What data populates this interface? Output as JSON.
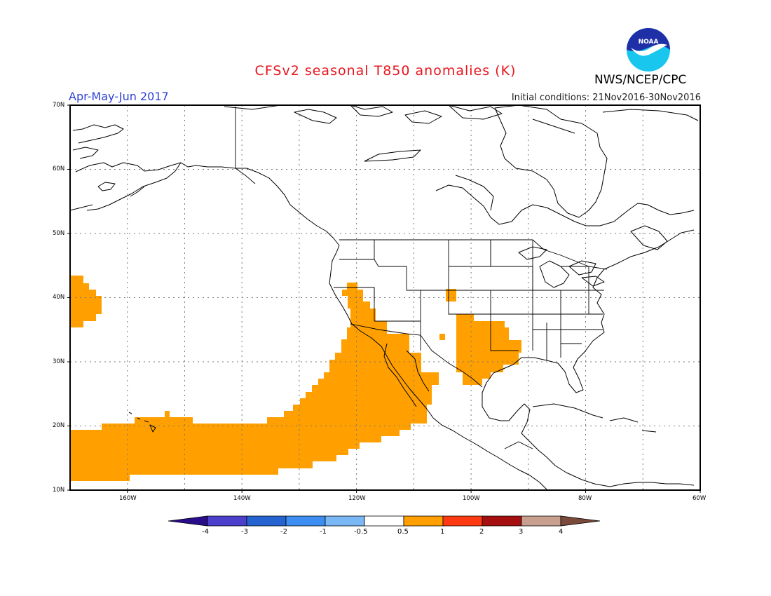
{
  "title": "CFSv2 seasonal T850 anomalies (K)",
  "season": "Apr-May-Jun 2017",
  "initial_conditions": "Initial conditions: 21Nov2016-30Nov2016",
  "agency": "NWS/NCEP/CPC",
  "logo_text": "NOAA",
  "colors": {
    "title": "#e8141c",
    "season": "#2a3fd6",
    "anomaly_fill": "#ffa000",
    "coast": "#000000",
    "grid": "#777777"
  },
  "map": {
    "lon_range": [
      -170,
      -60
    ],
    "lat_range": [
      10,
      70
    ],
    "lat_labels": [
      "70N",
      "60N",
      "50N",
      "40N",
      "30N",
      "20N",
      "10N"
    ],
    "lon_labels": [
      "160W",
      "140W",
      "120W",
      "100W",
      "80W",
      "60W"
    ]
  },
  "colorbar": {
    "colors": [
      "#2a0d8a",
      "#4b3fcc",
      "#2563d1",
      "#3d8ef0",
      "#7ab7f5",
      "#ffffff",
      "#ffa000",
      "#ff3a12",
      "#a50f0f",
      "#c8a08f",
      "#7a4a3a"
    ],
    "labels": [
      "-4",
      "-3",
      "-2",
      "-1",
      "-0.5",
      "0.5",
      "1",
      "2",
      "3",
      "4"
    ]
  }
}
